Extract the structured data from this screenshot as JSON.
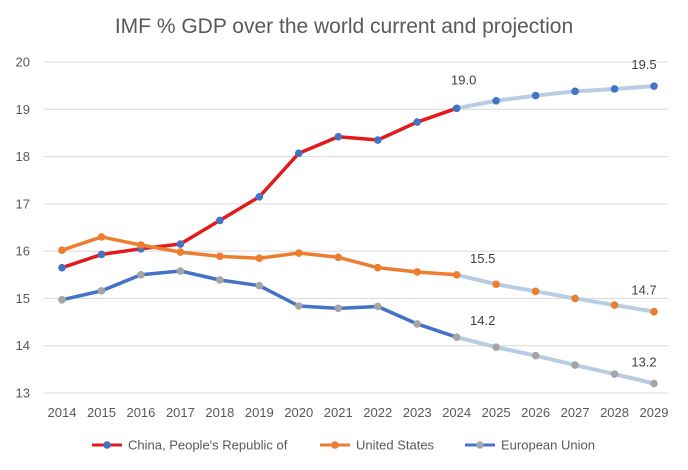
{
  "chart_data": {
    "type": "line",
    "title": "IMF % GDP over the world current and projection",
    "xlabel": "",
    "ylabel": "",
    "categories": [
      "2014",
      "2015",
      "2016",
      "2017",
      "2018",
      "2019",
      "2020",
      "2021",
      "2022",
      "2023",
      "2024",
      "2025",
      "2026",
      "2027",
      "2028",
      "2029"
    ],
    "ylim": [
      13,
      20
    ],
    "yticks": [
      "13",
      "14",
      "15",
      "16",
      "17",
      "18",
      "19",
      "20"
    ],
    "grid": "horizontal",
    "legend_position": "bottom",
    "series": [
      {
        "name": "China, People's Republic of",
        "color": "#e31a1c",
        "projection_color": "#b8cce4",
        "marker_color": "#4472c4",
        "values": [
          15.65,
          15.93,
          16.05,
          16.15,
          16.65,
          17.15,
          18.07,
          18.42,
          18.35,
          18.73,
          19.02,
          19.18,
          19.29,
          19.38,
          19.43,
          19.49
        ]
      },
      {
        "name": "United States",
        "color": "#ed7d31",
        "projection_color": "#b8cce4",
        "marker_color": "#ed7d31",
        "values": [
          16.02,
          16.3,
          16.13,
          15.98,
          15.89,
          15.85,
          15.96,
          15.87,
          15.65,
          15.56,
          15.5,
          15.3,
          15.15,
          15.0,
          14.86,
          14.72
        ]
      },
      {
        "name": "European Union",
        "color": "#4472c4",
        "projection_color": "#b8cce4",
        "marker_color": "#a5a5a5",
        "values": [
          14.97,
          15.16,
          15.5,
          15.58,
          15.39,
          15.27,
          14.84,
          14.79,
          14.83,
          14.46,
          14.18,
          13.97,
          13.79,
          13.59,
          13.4,
          13.2
        ]
      }
    ],
    "projection_start_index": 10,
    "annotations": [
      {
        "series": 0,
        "index": 10,
        "text": "19.0"
      },
      {
        "series": 0,
        "index": 15,
        "text": "19.5"
      },
      {
        "series": 1,
        "index": 10,
        "text": "15.5"
      },
      {
        "series": 1,
        "index": 15,
        "text": "14.7"
      },
      {
        "series": 2,
        "index": 10,
        "text": "14.2"
      },
      {
        "series": 2,
        "index": 15,
        "text": "13.2"
      }
    ]
  }
}
